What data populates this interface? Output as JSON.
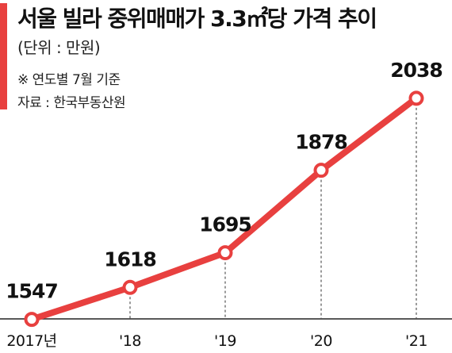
{
  "header": {
    "title": "서울 빌라 중위매매가 3.3㎡당 가격 추이",
    "unit": "(단위 : 만원)",
    "note": "※ 연도별 7월 기준",
    "source": "자료 : 한국부동산원"
  },
  "colors": {
    "accent": "#e8403f",
    "line": "#e8403f",
    "point_fill": "#ffffff"
  },
  "chart_data": {
    "type": "line",
    "title": "서울 빌라 중위매매가 3.3㎡당 가격 추이",
    "xlabel": "",
    "ylabel": "",
    "categories": [
      "2017년",
      "'18",
      "'19",
      "'20",
      "'21"
    ],
    "series": [
      {
        "values": [
          1547,
          1618,
          1695,
          1878,
          2038
        ],
        "labels": [
          "1547",
          "1618",
          "1695",
          "1878",
          "2038"
        ]
      }
    ],
    "ylim": [
      1460,
      2080
    ],
    "grid": false,
    "legend": "none"
  }
}
